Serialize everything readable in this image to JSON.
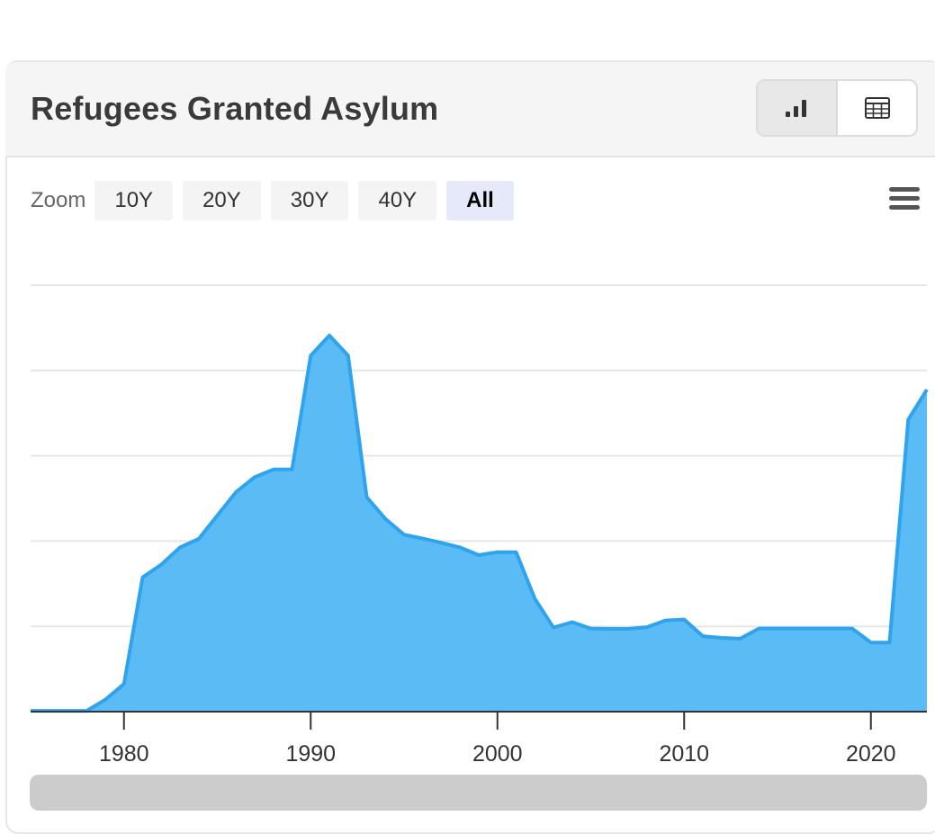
{
  "header": {
    "title": "Refugees Granted Asylum"
  },
  "view_toggle": {
    "chart_icon": "bar-chart-icon",
    "table_icon": "table-icon",
    "active": "chart"
  },
  "zoom": {
    "label": "Zoom",
    "buttons": [
      "10Y",
      "20Y",
      "30Y",
      "40Y",
      "All"
    ],
    "selected": "All"
  },
  "menu_icon": "hamburger-menu-icon",
  "colors": {
    "area_fill": "#5bbcf5",
    "area_stroke": "#2fa3ee",
    "grid": "#e6e6e6",
    "axis": "#333333"
  },
  "chart_data": {
    "type": "area",
    "title": "Refugees Granted Asylum",
    "xlabel": "",
    "ylabel": "",
    "xlim": [
      1975,
      2023
    ],
    "ylim": [
      0,
      100
    ],
    "grid": true,
    "x_ticks": [
      1980,
      1990,
      2000,
      2010,
      2020
    ],
    "x_tick_labels": [
      "1980",
      "1990",
      "2000",
      "2010",
      "2020"
    ],
    "y_gridlines": [
      20,
      40,
      60,
      80,
      100
    ],
    "x": [
      1975,
      1976,
      1977,
      1978,
      1979,
      1980,
      1981,
      1982,
      1983,
      1984,
      1985,
      1986,
      1987,
      1988,
      1989,
      1990,
      1991,
      1992,
      1993,
      1994,
      1995,
      1996,
      1997,
      1998,
      1999,
      2000,
      2001,
      2002,
      2003,
      2004,
      2005,
      2006,
      2007,
      2008,
      2009,
      2010,
      2011,
      2012,
      2013,
      2014,
      2015,
      2016,
      2017,
      2018,
      2019,
      2020,
      2021,
      2022,
      2023
    ],
    "values": [
      0.2,
      0.2,
      0.2,
      0.2,
      2.8,
      6.5,
      31.5,
      34.5,
      38.5,
      40.5,
      46,
      51.5,
      55,
      56.8,
      56.8,
      83.5,
      88.2,
      83.5,
      50.3,
      45.2,
      41.5,
      40.6,
      39.6,
      38.5,
      36.7,
      37.4,
      37.4,
      26.5,
      19.7,
      21,
      19.5,
      19.4,
      19.4,
      19.8,
      21.4,
      21.6,
      17.7,
      17.3,
      17.1,
      19.5,
      19.5,
      19.5,
      19.5,
      19.5,
      19.5,
      16.2,
      16.2,
      68.5,
      75.5
    ]
  }
}
